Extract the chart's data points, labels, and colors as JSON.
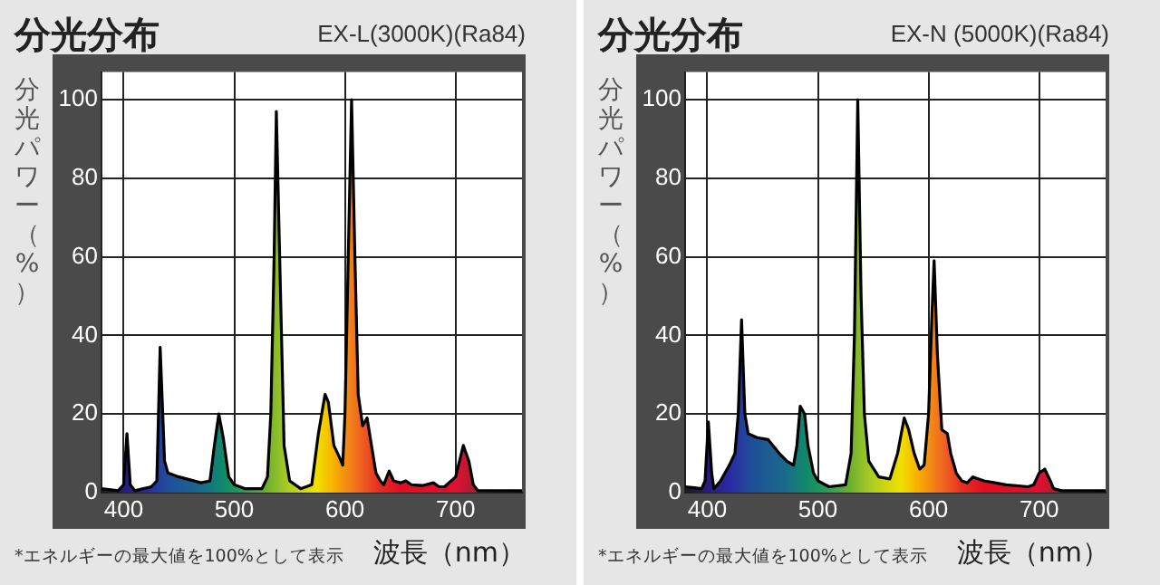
{
  "chart_data": [
    {
      "type": "area",
      "title": "分光分布",
      "subtitle": "EX-L(3000K)(Ra84)",
      "xlabel": "波長（nm）",
      "ylabel": "分光パワー（%）",
      "annotations": [
        "*エネルギーの最大値を100%として表示"
      ],
      "x": [
        380,
        395,
        400,
        403,
        406,
        410,
        425,
        430,
        433,
        437,
        440,
        450,
        470,
        478,
        482,
        486,
        490,
        495,
        500,
        510,
        525,
        530,
        533,
        536,
        538,
        541,
        545,
        550,
        560,
        570,
        576,
        582,
        585,
        590,
        595,
        598,
        600,
        603,
        606,
        609,
        612,
        616,
        620,
        624,
        628,
        632,
        635,
        640,
        644,
        650,
        655,
        660,
        670,
        680,
        685,
        690,
        700,
        707,
        712,
        716,
        720,
        740,
        760
      ],
      "series": [
        {
          "color": "#000000",
          "values": [
            1,
            0.5,
            2,
            15,
            2,
            0.5,
            1.5,
            3,
            37,
            8,
            5,
            4,
            2.5,
            3,
            12,
            20,
            14,
            4,
            2,
            1,
            1,
            4,
            20,
            60,
            97,
            60,
            12,
            3,
            1,
            2,
            15,
            25,
            23,
            12,
            9,
            7,
            20,
            60,
            100,
            60,
            25,
            17,
            19,
            12,
            5,
            3,
            2,
            5.5,
            3,
            2.5,
            3,
            2,
            1.8,
            2.5,
            1.5,
            1.5,
            4,
            12,
            8,
            2,
            0.5,
            0.5,
            0.5
          ]
        }
      ],
      "xlim": [
        380,
        760
      ],
      "ylim": [
        0,
        107
      ],
      "xticks": [
        400,
        500,
        600,
        700
      ],
      "yticks": [
        0,
        20,
        40,
        60,
        80,
        100
      ],
      "grid": true
    },
    {
      "type": "area",
      "title": "分光分布",
      "subtitle": "EX-N (5000K)(Ra84)",
      "xlabel": "波長（nm）",
      "ylabel": "分光パワー（%）",
      "annotations": [
        "*エネルギーの最大値を100%として表示"
      ],
      "x": [
        380,
        395,
        398,
        401,
        404,
        406,
        412,
        420,
        425,
        428,
        431,
        434,
        437,
        445,
        455,
        465,
        472,
        478,
        481,
        484,
        488,
        491,
        496,
        500,
        510,
        525,
        530,
        533,
        536,
        539,
        542,
        546,
        555,
        565,
        572,
        578,
        582,
        587,
        592,
        596,
        600,
        603,
        605,
        608,
        612,
        617,
        620,
        625,
        630,
        635,
        640,
        650,
        660,
        670,
        690,
        695,
        700,
        705,
        710,
        713,
        720,
        760
      ],
      "series": [
        {
          "color": "#000000",
          "values": [
            1.5,
            1,
            3,
            18,
            5,
            1,
            3,
            7,
            10,
            20,
            44,
            20,
            15,
            14,
            13.5,
            10,
            8,
            7,
            12,
            22,
            20,
            12,
            5,
            3,
            1.5,
            2,
            10,
            40,
            100,
            50,
            20,
            8,
            4,
            3.5,
            10,
            19,
            16,
            10,
            6,
            7,
            20,
            45,
            59,
            35,
            16,
            15,
            10,
            5,
            3,
            2.5,
            4,
            3,
            2.5,
            2,
            1.5,
            2,
            5,
            6,
            3,
            1,
            0.5,
            0.5
          ]
        }
      ],
      "xlim": [
        380,
        760
      ],
      "ylim": [
        0,
        107
      ],
      "xticks": [
        400,
        500,
        600,
        700
      ],
      "yticks": [
        0,
        20,
        40,
        60,
        80,
        100
      ],
      "grid": true
    }
  ]
}
